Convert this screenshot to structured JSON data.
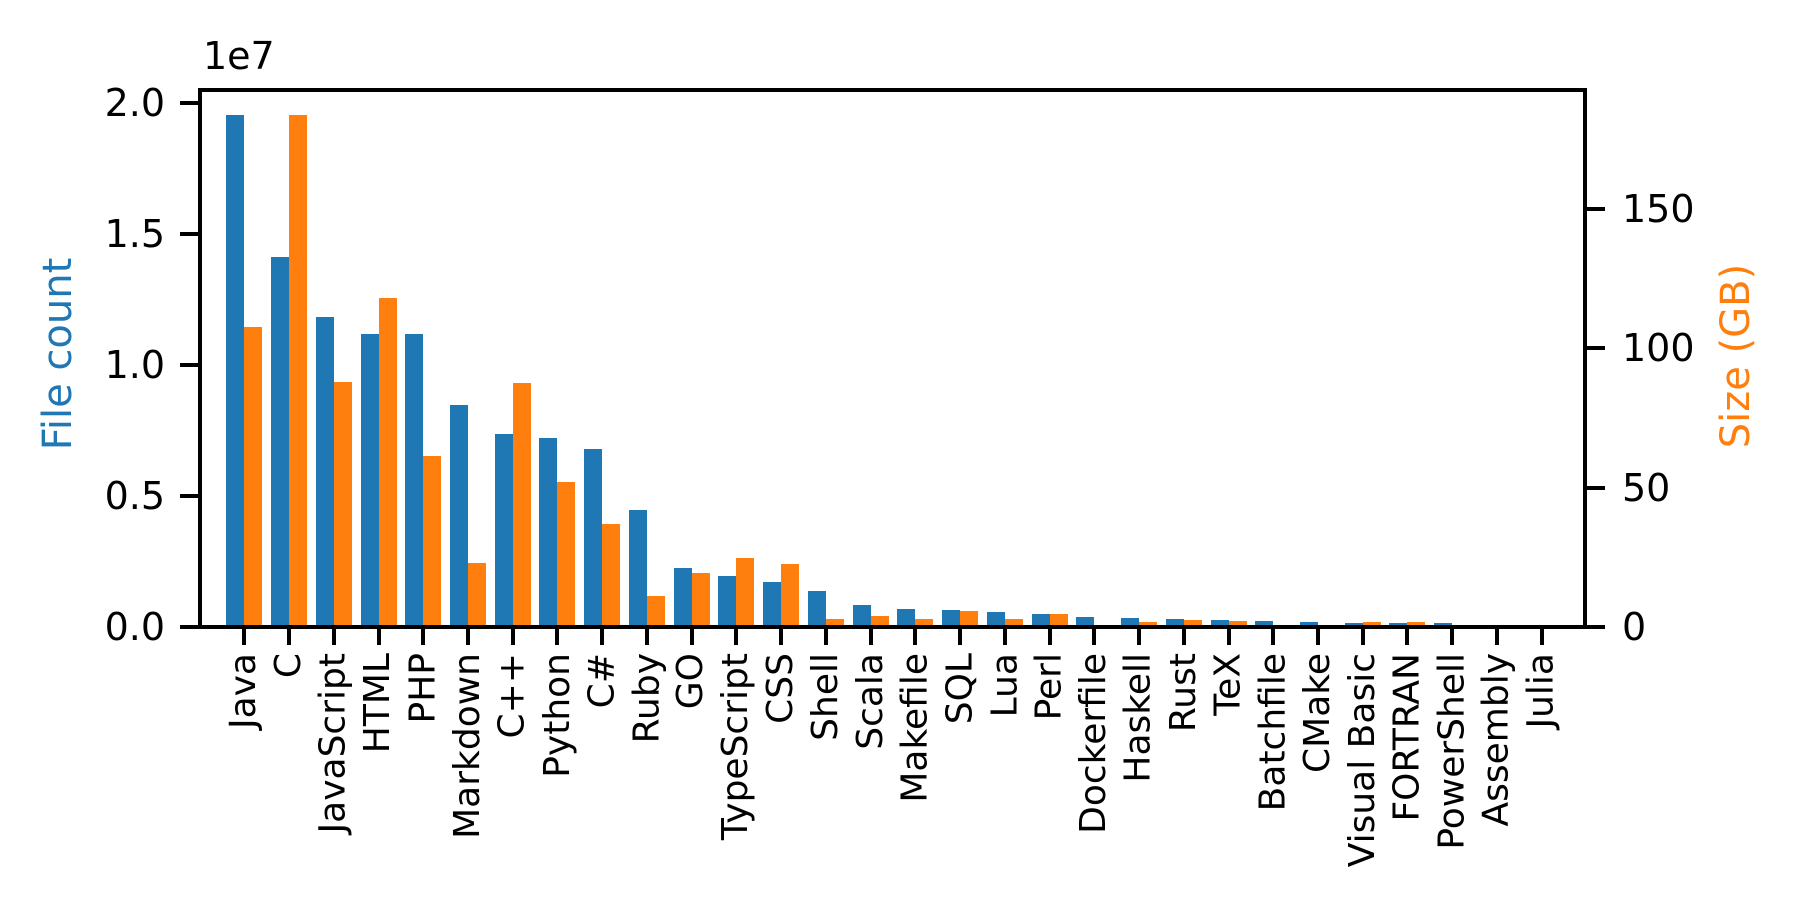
{
  "chart_data": {
    "type": "bar",
    "title": "",
    "grid": false,
    "legend": "none",
    "categories": [
      "Java",
      "C",
      "JavaScript",
      "HTML",
      "PHP",
      "Markdown",
      "C++",
      "Python",
      "C#",
      "Ruby",
      "GO",
      "TypeScript",
      "CSS",
      "Shell",
      "Scala",
      "Makefile",
      "SQL",
      "Lua",
      "Perl",
      "Dockerfile",
      "Haskell",
      "Rust",
      "TeX",
      "Batchfile",
      "CMake",
      "Visual Basic",
      "FORTRAN",
      "PowerShell",
      "Assembly",
      "Julia"
    ],
    "series": [
      {
        "name": "File count",
        "axis": "left",
        "color": "#1f77b4",
        "values": [
          19548190,
          14143113,
          11839883,
          11178557,
          11177610,
          8464626,
          7380520,
          7226626,
          6811652,
          4473331,
          2265436,
          1940406,
          1734406,
          1385648,
          835755,
          679430,
          656671,
          578554,
          497949,
          366505,
          340380,
          322431,
          251015,
          236945,
          175282,
          155652,
          142038,
          136846,
          82905,
          58317
        ]
      },
      {
        "name": "Size (GB)",
        "axis": "right",
        "color": "#ff7f0e",
        "values": [
          107.7,
          183.83,
          87.82,
          118.12,
          61.41,
          23.09,
          87.73,
          52.03,
          36.83,
          10.95,
          19.28,
          24.59,
          22.67,
          3.01,
          3.87,
          2.92,
          5.67,
          2.81,
          4.7,
          0.71,
          1.85,
          2.68,
          2.15,
          0.7,
          0.54,
          1.91,
          1.62,
          0.69,
          0.78,
          0.29
        ]
      }
    ],
    "left_axis": {
      "label": "File count",
      "color": "#1f77b4",
      "offset_text": "1e7",
      "ticks": [
        0,
        5000000,
        10000000,
        15000000,
        20000000
      ],
      "tick_labels": [
        "0.0",
        "0.5",
        "1.0",
        "1.5",
        "2.0"
      ],
      "range": [
        0,
        20500000
      ]
    },
    "right_axis": {
      "label": "Size (GB)",
      "color": "#ff7f0e",
      "ticks": [
        0,
        50,
        100,
        150
      ],
      "tick_labels": [
        "0",
        "50",
        "100",
        "150"
      ],
      "range": [
        0,
        192.7
      ]
    },
    "x_axis": {
      "tick_label_rotation": 90
    }
  }
}
